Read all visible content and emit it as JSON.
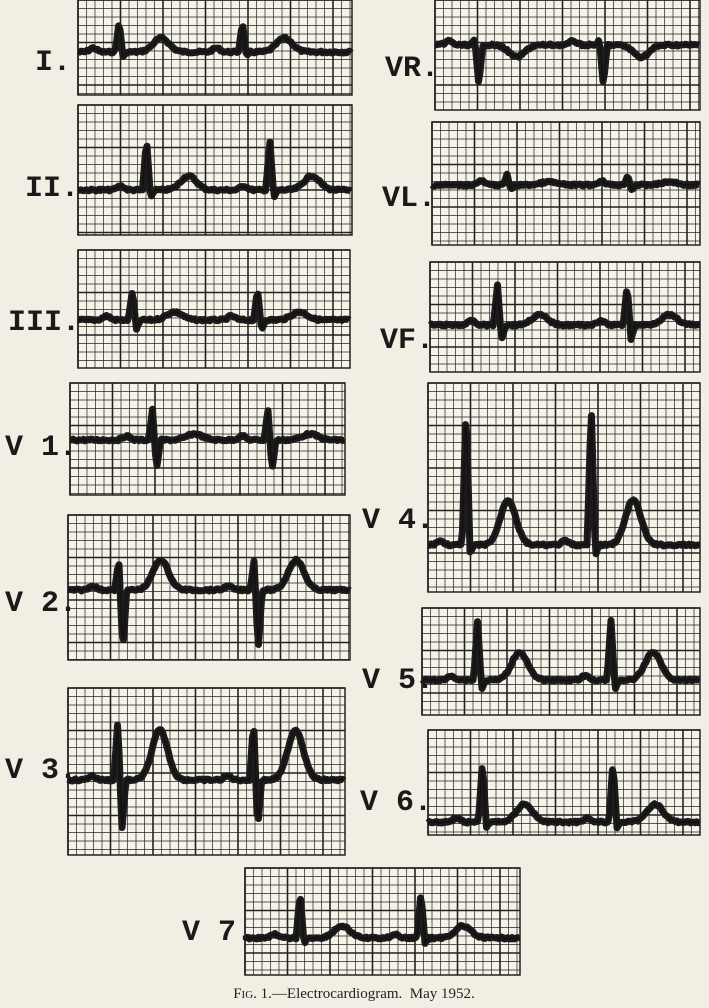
{
  "leads": [
    {
      "label": "I."
    },
    {
      "label": "II."
    },
    {
      "label": "III."
    },
    {
      "label": "V 1."
    },
    {
      "label": "V 2."
    },
    {
      "label": "V 3."
    },
    {
      "label": "VR."
    },
    {
      "label": "VL."
    },
    {
      "label": "VF."
    },
    {
      "label": "V 4."
    },
    {
      "label": "V 5."
    },
    {
      "label": "V 6."
    },
    {
      "label": "V 7."
    }
  ],
  "caption": {
    "figure": "Fig. 1.",
    "text": "—Electrocardiogram.  May 1952."
  }
}
